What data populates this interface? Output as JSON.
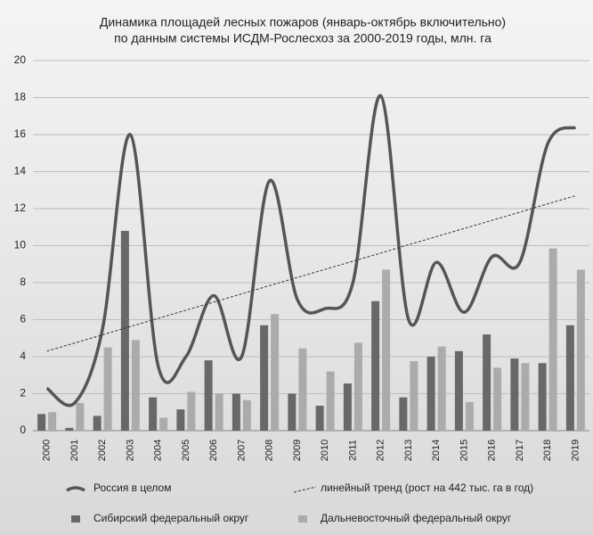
{
  "chart_data": {
    "type": "bar",
    "title": [
      "Динамика площадей лесных пожаров (январь-октябрь включительно)",
      "по данным системы ИСДМ-Рослесхоз за 2000-2019 годы, млн. га"
    ],
    "categories": [
      "2000",
      "2001",
      "2002",
      "2003",
      "2004",
      "2005",
      "2006",
      "2007",
      "2008",
      "2009",
      "2010",
      "2011",
      "2012",
      "2013",
      "2014",
      "2015",
      "2016",
      "2017",
      "2018",
      "2019"
    ],
    "series": [
      {
        "name": "Россия в целом",
        "type": "line",
        "smooth": true,
        "color": "#555555",
        "values": [
          2.3,
          1.5,
          5.5,
          16,
          3.5,
          4,
          7.3,
          4,
          13.5,
          7.1,
          6.6,
          8,
          18.1,
          6,
          9.1,
          6.4,
          9.4,
          9.1,
          15.5,
          16.4
        ]
      },
      {
        "name": "линейный тренд (рост на 442 тыс. га в год)",
        "type": "line",
        "dashed": true,
        "color": "#333333",
        "values": [
          4.3,
          4.74,
          5.18,
          5.63,
          6.07,
          6.51,
          6.95,
          7.39,
          7.84,
          8.28,
          8.72,
          9.16,
          9.6,
          10.05,
          10.49,
          10.93,
          11.37,
          11.81,
          12.26,
          12.7
        ]
      },
      {
        "name": "Сибирский федеральный округ",
        "type": "bar",
        "color": "#686868",
        "values": [
          0.9,
          0.15,
          0.8,
          10.8,
          1.8,
          1.15,
          3.8,
          2,
          5.7,
          2,
          1.35,
          2.55,
          7,
          1.8,
          4,
          4.3,
          5.2,
          3.9,
          3.65,
          5.7
        ]
      },
      {
        "name": "Дальневосточный федеральный округ",
        "type": "bar",
        "color": "#ababab",
        "values": [
          1,
          1.5,
          4.5,
          4.9,
          0.7,
          2.1,
          2,
          1.65,
          6.3,
          4.45,
          3.2,
          4.75,
          8.7,
          3.75,
          4.55,
          1.55,
          3.4,
          3.65,
          9.85,
          8.7
        ]
      }
    ],
    "ylim": [
      0,
      20
    ],
    "yticks": [
      0,
      2,
      4,
      6,
      8,
      10,
      12,
      14,
      16,
      18,
      20
    ],
    "grid": true,
    "legend": "bottom"
  }
}
